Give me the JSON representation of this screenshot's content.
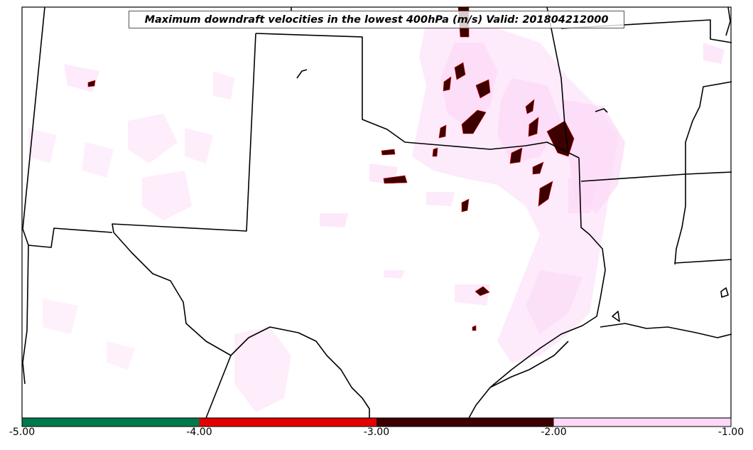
{
  "title": "Maximum downdraft velocities in the lowest 400hPa (m/s) Valid: 201804212000",
  "colorbar": {
    "bins": [
      {
        "from": -5.0,
        "to": -4.0,
        "color": "#007a4d"
      },
      {
        "from": -4.0,
        "to": -3.0,
        "color": "#e30000"
      },
      {
        "from": -3.0,
        "to": -2.0,
        "color": "#3d0000"
      },
      {
        "from": -2.0,
        "to": -1.0,
        "color": "#fcd8f7"
      }
    ],
    "tick_labels": [
      "-5.00",
      "-4.00",
      "-3.00",
      "-2.00",
      "-1.00"
    ]
  },
  "colors": {
    "weak_downdraft": "#fcd8f7",
    "moderate_downdraft": "#3d0000",
    "strong_downdraft": "#e30000",
    "boundary": "#000000"
  }
}
